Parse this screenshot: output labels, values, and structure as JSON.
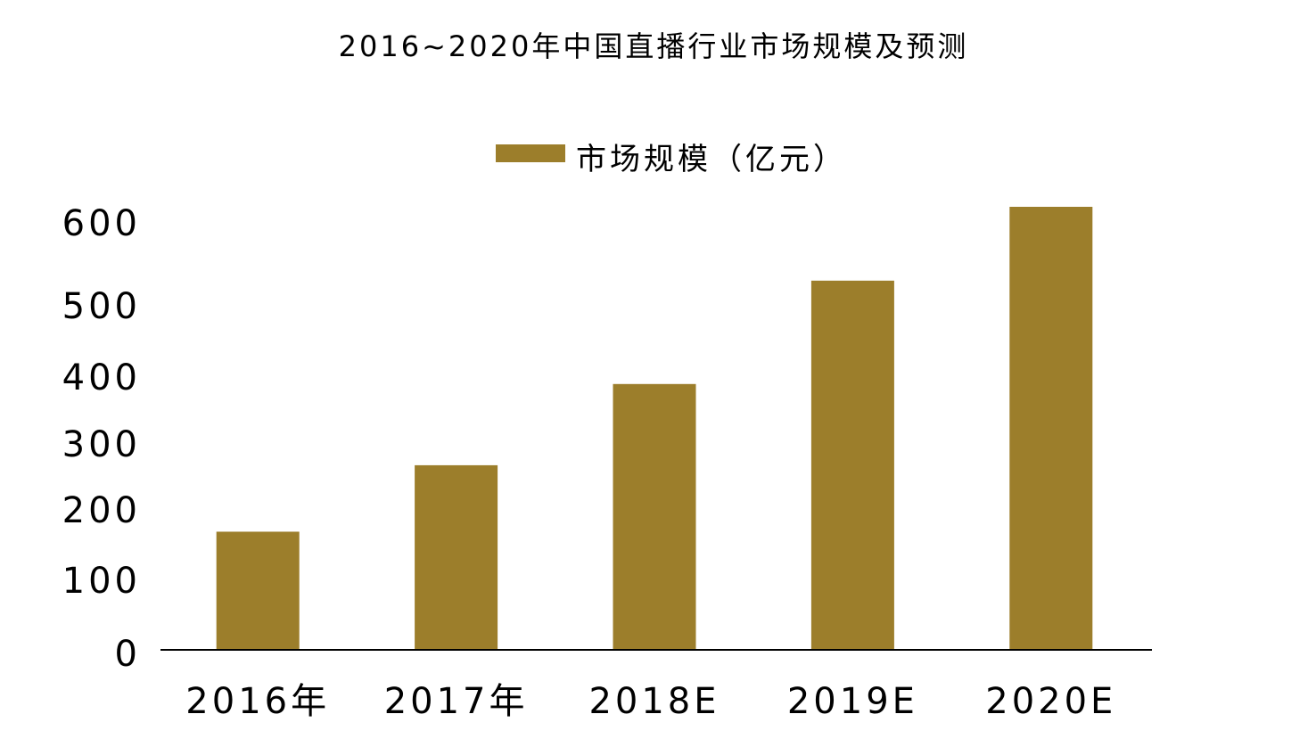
{
  "chart_data": {
    "type": "bar",
    "title": "2016~2020年中国直播行业市场规模及预测",
    "categories": [
      "2016年",
      "2017年",
      "2018E",
      "2019E",
      "2020E"
    ],
    "series": [
      {
        "name": "市场规模（亿元）",
        "values": [
          160,
          250,
          360,
          500,
          600
        ],
        "color": "#9C7E2B"
      }
    ],
    "xlabel": "",
    "ylabel": "",
    "ylim": [
      0,
      600
    ],
    "yticks": [
      "0",
      "100",
      "200",
      "300",
      "400",
      "500",
      "600"
    ],
    "grid": false,
    "legend": "top-center"
  }
}
